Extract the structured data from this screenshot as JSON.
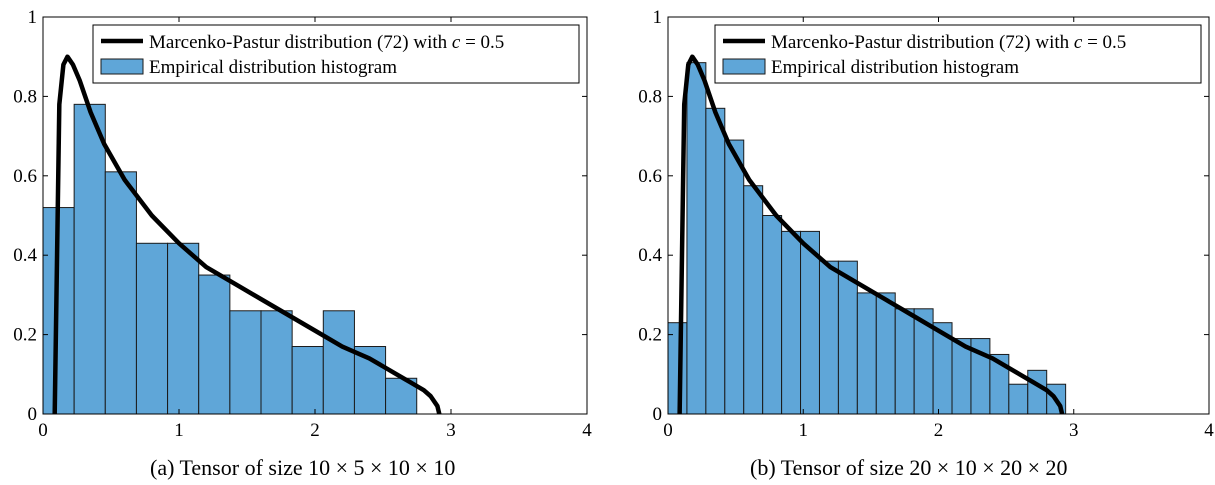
{
  "captions": {
    "a": "(a) Tensor of size 10 × 5 × 10 × 10",
    "b": "(b) Tensor of size 20 × 10 × 20 × 20"
  },
  "colors": {
    "bar_fill": "#5fa6d8",
    "bar_stroke": "#1a1a1a",
    "curve": "#000000",
    "axis": "#000000"
  },
  "chart_data": [
    {
      "type": "bar",
      "subtitle": "(a) Tensor of size 10 × 5 × 10 × 10",
      "xlim": [
        0,
        4
      ],
      "ylim": [
        0,
        1
      ],
      "xticks": [
        "0",
        "1",
        "2",
        "3",
        "4"
      ],
      "yticks": [
        "0",
        "0.2",
        "0.4",
        "0.6",
        "0.8",
        "1"
      ],
      "grid": false,
      "legend_position": "top-right",
      "legend": [
        "Marcenko-Pastur distribution (72) with c = 0.5",
        "Empirical distribution histogram"
      ],
      "series": [
        {
          "name": "Marcenko-Pastur distribution (72) with c = 0.5",
          "kind": "line",
          "x": [
            0.086,
            0.12,
            0.15,
            0.18,
            0.22,
            0.27,
            0.35,
            0.45,
            0.6,
            0.8,
            1.0,
            1.2,
            1.4,
            1.6,
            1.8,
            2.0,
            2.2,
            2.4,
            2.6,
            2.7,
            2.8,
            2.85,
            2.9,
            2.914
          ],
          "y": [
            0,
            0.78,
            0.88,
            0.9,
            0.88,
            0.84,
            0.76,
            0.68,
            0.59,
            0.5,
            0.43,
            0.37,
            0.33,
            0.29,
            0.25,
            0.21,
            0.17,
            0.14,
            0.1,
            0.08,
            0.06,
            0.045,
            0.02,
            0
          ]
        },
        {
          "name": "Empirical distribution histogram",
          "kind": "histogram",
          "bin_edges": [
            0,
            0.229,
            0.458,
            0.687,
            0.916,
            1.145,
            1.374,
            1.603,
            1.832,
            2.061,
            2.29,
            2.519,
            2.748
          ],
          "values": [
            0.52,
            0.78,
            0.61,
            0.43,
            0.43,
            0.35,
            0.26,
            0.26,
            0.17,
            0.26,
            0.17,
            0.09
          ]
        }
      ]
    },
    {
      "type": "bar",
      "subtitle": "(b) Tensor of size 20 × 10 × 20 × 20",
      "xlim": [
        0,
        4
      ],
      "ylim": [
        0,
        1
      ],
      "xticks": [
        "0",
        "1",
        "2",
        "3",
        "4"
      ],
      "yticks": [
        "0",
        "0.2",
        "0.4",
        "0.6",
        "0.8",
        "1"
      ],
      "grid": false,
      "legend_position": "top-right",
      "legend": [
        "Marcenko-Pastur distribution (72) with c = 0.5",
        "Empirical distribution histogram"
      ],
      "series": [
        {
          "name": "Marcenko-Pastur distribution (72) with c = 0.5",
          "kind": "line",
          "x": [
            0.086,
            0.12,
            0.15,
            0.18,
            0.22,
            0.27,
            0.35,
            0.45,
            0.6,
            0.8,
            1.0,
            1.2,
            1.4,
            1.6,
            1.8,
            2.0,
            2.2,
            2.4,
            2.6,
            2.7,
            2.8,
            2.85,
            2.9,
            2.914
          ],
          "y": [
            0,
            0.78,
            0.88,
            0.9,
            0.88,
            0.84,
            0.76,
            0.68,
            0.59,
            0.5,
            0.43,
            0.37,
            0.33,
            0.29,
            0.25,
            0.21,
            0.17,
            0.14,
            0.1,
            0.08,
            0.06,
            0.045,
            0.02,
            0
          ]
        },
        {
          "name": "Empirical distribution histogram",
          "kind": "histogram",
          "bin_edges": [
            0,
            0.14,
            0.28,
            0.42,
            0.56,
            0.7,
            0.84,
            0.98,
            1.12,
            1.26,
            1.4,
            1.54,
            1.68,
            1.82,
            1.96,
            2.1,
            2.24,
            2.38,
            2.52,
            2.66,
            2.8,
            2.94
          ],
          "values": [
            0.23,
            0.885,
            0.77,
            0.69,
            0.575,
            0.5,
            0.46,
            0.46,
            0.385,
            0.385,
            0.305,
            0.305,
            0.265,
            0.265,
            0.23,
            0.19,
            0.19,
            0.15,
            0.075,
            0.11,
            0.075
          ]
        }
      ]
    }
  ]
}
